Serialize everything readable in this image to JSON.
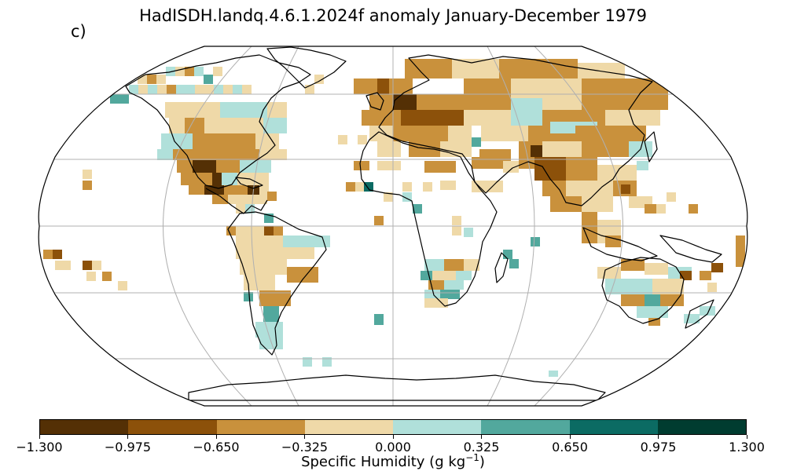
{
  "title": "HadISDH.landq.4.6.1.2024f anomaly January-December 1979",
  "panel_label": "c)",
  "colorbar": {
    "label_prefix": "Specific Humidity (g kg",
    "label_sup": "−1",
    "label_suffix": ")",
    "ticks": [
      "−1.300",
      "−0.975",
      "−0.650",
      "−0.325",
      "0.000",
      "0.325",
      "0.650",
      "0.975",
      "1.300"
    ],
    "colors": [
      "#543005",
      "#8c510a",
      "#c9913c",
      "#efd9a8",
      "#b0e0da",
      "#52a89d",
      "#0b6b63",
      "#003c30"
    ]
  },
  "projection": "robinson",
  "gridlines": true
}
